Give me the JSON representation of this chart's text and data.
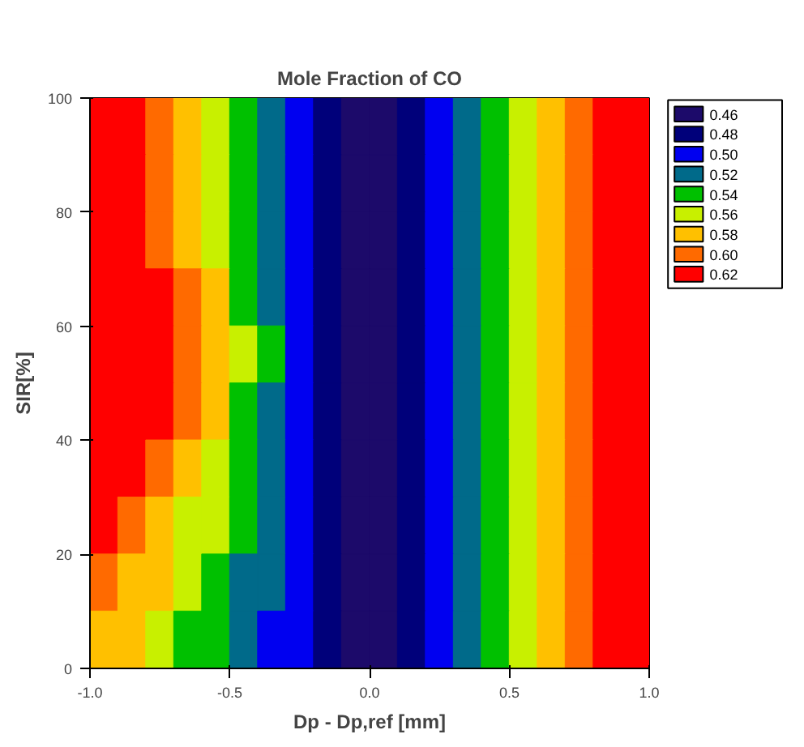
{
  "chart_data": {
    "type": "heatmap",
    "title": "Mole Fraction of CO",
    "xlabel": "Dp - Dp,ref [mm]",
    "ylabel": "SIR[%]",
    "x": [
      -0.95,
      -0.85,
      -0.75,
      -0.65,
      -0.55,
      -0.45,
      -0.35,
      -0.25,
      -0.15,
      -0.05,
      0.05,
      0.15,
      0.25,
      0.35,
      0.45,
      0.55,
      0.65,
      0.75,
      0.85,
      0.95
    ],
    "cells": [
      [
        0.62,
        0.62,
        0.6,
        0.59,
        0.57,
        0.55,
        0.53,
        0.51,
        0.49,
        0.47,
        0.47,
        0.49,
        0.51,
        0.53,
        0.55,
        0.56,
        0.58,
        0.6,
        0.62,
        0.62
      ],
      [
        0.62,
        0.62,
        0.6,
        0.59,
        0.57,
        0.55,
        0.53,
        0.51,
        0.49,
        0.47,
        0.47,
        0.49,
        0.51,
        0.53,
        0.55,
        0.56,
        0.58,
        0.6,
        0.62,
        0.62
      ],
      [
        0.62,
        0.62,
        0.61,
        0.59,
        0.57,
        0.55,
        0.53,
        0.51,
        0.49,
        0.47,
        0.47,
        0.49,
        0.51,
        0.53,
        0.55,
        0.56,
        0.58,
        0.6,
        0.62,
        0.62
      ],
      [
        0.62,
        0.62,
        0.62,
        0.6,
        0.58,
        0.55,
        0.53,
        0.51,
        0.49,
        0.47,
        0.47,
        0.49,
        0.51,
        0.53,
        0.55,
        0.56,
        0.58,
        0.6,
        0.62,
        0.62
      ],
      [
        0.62,
        0.62,
        0.62,
        0.6,
        0.58,
        0.56,
        0.54,
        0.51,
        0.49,
        0.47,
        0.47,
        0.49,
        0.51,
        0.53,
        0.55,
        0.56,
        0.58,
        0.6,
        0.62,
        0.62
      ],
      [
        0.62,
        0.62,
        0.62,
        0.6,
        0.58,
        0.55,
        0.53,
        0.51,
        0.49,
        0.47,
        0.47,
        0.49,
        0.51,
        0.53,
        0.55,
        0.56,
        0.58,
        0.6,
        0.62,
        0.62
      ],
      [
        0.62,
        0.62,
        0.6,
        0.59,
        0.57,
        0.55,
        0.53,
        0.51,
        0.49,
        0.47,
        0.47,
        0.49,
        0.51,
        0.53,
        0.55,
        0.56,
        0.58,
        0.6,
        0.62,
        0.62
      ],
      [
        0.62,
        0.61,
        0.59,
        0.57,
        0.56,
        0.54,
        0.52,
        0.5,
        0.49,
        0.47,
        0.47,
        0.49,
        0.51,
        0.53,
        0.55,
        0.56,
        0.58,
        0.6,
        0.62,
        0.62
      ],
      [
        0.61,
        0.59,
        0.58,
        0.56,
        0.55,
        0.53,
        0.52,
        0.5,
        0.48,
        0.47,
        0.47,
        0.49,
        0.51,
        0.53,
        0.55,
        0.56,
        0.58,
        0.6,
        0.62,
        0.62
      ],
      [
        0.59,
        0.58,
        0.57,
        0.55,
        0.54,
        0.52,
        0.51,
        0.5,
        0.48,
        0.47,
        0.47,
        0.49,
        0.51,
        0.53,
        0.55,
        0.56,
        0.58,
        0.6,
        0.62,
        0.62
      ]
    ],
    "xlim": [
      -1,
      1
    ],
    "ylim": [
      0,
      100
    ],
    "xticks": [
      {
        "value": -1,
        "label": "-1.0"
      },
      {
        "value": -0.5,
        "label": "-0.5"
      },
      {
        "value": 0,
        "label": "0.0"
      },
      {
        "value": 0.5,
        "label": "0.5"
      },
      {
        "value": 1,
        "label": "1.0"
      }
    ],
    "yticks": [
      0,
      20,
      40,
      60,
      80,
      100
    ],
    "clim": [
      0.46,
      0.62
    ],
    "cticks": [
      {
        "value": 0.46,
        "label": "0.46"
      },
      {
        "value": 0.48,
        "label": "0.48"
      },
      {
        "value": 0.5,
        "label": "0.50"
      },
      {
        "value": 0.52,
        "label": "0.52"
      },
      {
        "value": 0.54,
        "label": "0.54"
      },
      {
        "value": 0.56,
        "label": "0.56"
      },
      {
        "value": 0.58,
        "label": "0.58"
      },
      {
        "value": 0.6,
        "label": "0.60"
      },
      {
        "value": 0.62,
        "label": "0.62"
      }
    ],
    "colors": [
      "#1c0a6a",
      "#00007a",
      "#0000f0",
      "#006a8a",
      "#00c000",
      "#c8f000",
      "#ffc000",
      "#ff6a00",
      "#ff0000"
    ]
  }
}
